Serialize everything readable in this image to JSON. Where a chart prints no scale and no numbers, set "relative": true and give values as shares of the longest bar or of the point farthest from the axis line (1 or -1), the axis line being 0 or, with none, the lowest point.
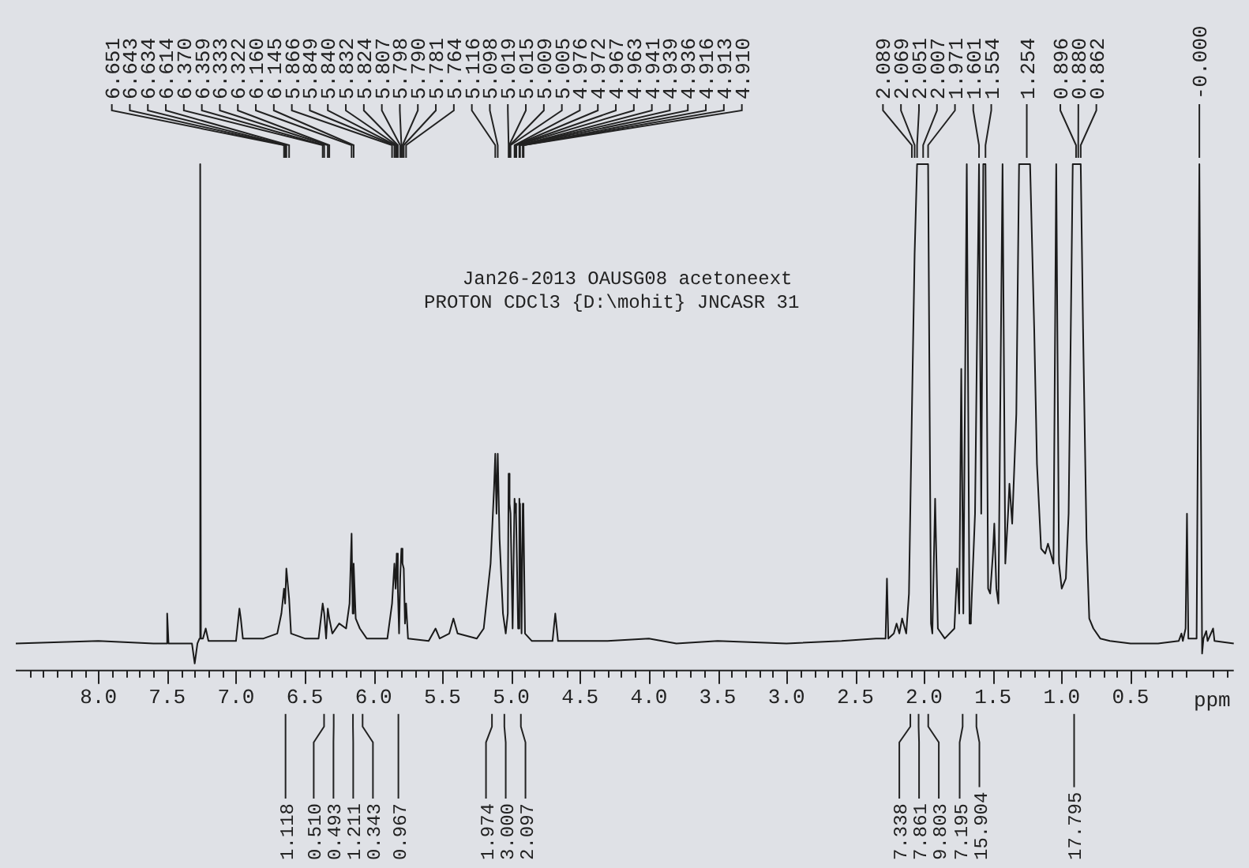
{
  "chart_data": {
    "type": "line",
    "title": "Jan26-2013 OAUSG08 acetoneext",
    "subtitle": "PROTON CDCl3 {D:\\mohit} JNCASR 31",
    "xlabel": "ppm",
    "relative": true,
    "grid": false,
    "legend": false,
    "marker": "none",
    "line_style": "solid",
    "tick_labels": "x",
    "xlim": [
      8.6,
      -0.25
    ],
    "xticks": [
      {
        "value": 8.5,
        "label": null
      },
      {
        "value": 8.4,
        "label": null
      },
      {
        "value": 8.3,
        "label": null
      },
      {
        "value": 8.2,
        "label": null
      },
      {
        "value": 8.1,
        "label": null
      },
      {
        "value": 8,
        "label": "8.0"
      },
      {
        "value": 7.9,
        "label": null
      },
      {
        "value": 7.8,
        "label": null
      },
      {
        "value": 7.7,
        "label": null
      },
      {
        "value": 7.6,
        "label": null
      },
      {
        "value": 7.5,
        "label": "7.5"
      },
      {
        "value": 7.4,
        "label": null
      },
      {
        "value": 7.3,
        "label": null
      },
      {
        "value": 7.2,
        "label": null
      },
      {
        "value": 7.1,
        "label": null
      },
      {
        "value": 7,
        "label": "7.0"
      },
      {
        "value": 6.9,
        "label": null
      },
      {
        "value": 6.8,
        "label": null
      },
      {
        "value": 6.7,
        "label": null
      },
      {
        "value": 6.6,
        "label": null
      },
      {
        "value": 6.5,
        "label": "6.5"
      },
      {
        "value": 6.4,
        "label": null
      },
      {
        "value": 6.3,
        "label": null
      },
      {
        "value": 6.2,
        "label": null
      },
      {
        "value": 6.1,
        "label": null
      },
      {
        "value": 6,
        "label": "6.0"
      },
      {
        "value": 5.9,
        "label": null
      },
      {
        "value": 5.8,
        "label": null
      },
      {
        "value": 5.7,
        "label": null
      },
      {
        "value": 5.6,
        "label": null
      },
      {
        "value": 5.5,
        "label": "5.5"
      },
      {
        "value": 5.4,
        "label": null
      },
      {
        "value": 5.3,
        "label": null
      },
      {
        "value": 5.2,
        "label": null
      },
      {
        "value": 5.1,
        "label": null
      },
      {
        "value": 5,
        "label": "5.0"
      },
      {
        "value": 4.9,
        "label": null
      },
      {
        "value": 4.8,
        "label": null
      },
      {
        "value": 4.7,
        "label": null
      },
      {
        "value": 4.6,
        "label": null
      },
      {
        "value": 4.5,
        "label": "4.5"
      },
      {
        "value": 4.4,
        "label": null
      },
      {
        "value": 4.3,
        "label": null
      },
      {
        "value": 4.2,
        "label": null
      },
      {
        "value": 4.1,
        "label": null
      },
      {
        "value": 4,
        "label": "4.0"
      },
      {
        "value": 3.9,
        "label": null
      },
      {
        "value": 3.8,
        "label": null
      },
      {
        "value": 3.7,
        "label": null
      },
      {
        "value": 3.6,
        "label": null
      },
      {
        "value": 3.5,
        "label": "3.5"
      },
      {
        "value": 3.4,
        "label": null
      },
      {
        "value": 3.3,
        "label": null
      },
      {
        "value": 3.2,
        "label": null
      },
      {
        "value": 3.1,
        "label": null
      },
      {
        "value": 3,
        "label": "3.0"
      },
      {
        "value": 2.9,
        "label": null
      },
      {
        "value": 2.8,
        "label": null
      },
      {
        "value": 2.7,
        "label": null
      },
      {
        "value": 2.6,
        "label": null
      },
      {
        "value": 2.5,
        "label": "2.5"
      },
      {
        "value": 2.4,
        "label": null
      },
      {
        "value": 2.3,
        "label": null
      },
      {
        "value": 2.2,
        "label": null
      },
      {
        "value": 2.1,
        "label": null
      },
      {
        "value": 2,
        "label": "2.0"
      },
      {
        "value": 1.9,
        "label": null
      },
      {
        "value": 1.8,
        "label": null
      },
      {
        "value": 1.7,
        "label": null
      },
      {
        "value": 1.6,
        "label": null
      },
      {
        "value": 1.5,
        "label": "1.5"
      },
      {
        "value": 1.4,
        "label": null
      },
      {
        "value": 1.3,
        "label": null
      },
      {
        "value": 1.2,
        "label": null
      },
      {
        "value": 1.1,
        "label": null
      },
      {
        "value": 1,
        "label": "1.0"
      },
      {
        "value": 0.9,
        "label": null
      },
      {
        "value": 0.8,
        "label": null
      },
      {
        "value": 0.7,
        "label": null
      },
      {
        "value": 0.6,
        "label": null
      },
      {
        "value": 0.5,
        "label": "0.5"
      },
      {
        "value": 0.4,
        "label": null
      },
      {
        "value": 0.3,
        "label": null
      },
      {
        "value": 0.2,
        "label": null
      },
      {
        "value": 0.1,
        "label": null
      },
      {
        "value": -0.1,
        "label": null
      },
      {
        "value": -0.2,
        "label": null
      }
    ],
    "series": [
      {
        "color": "#1a1a1a",
        "x": [
          8.6,
          8.0,
          7.6,
          7.51,
          7.5,
          7.49,
          7.32,
          7.3,
          7.28,
          7.265,
          7.26,
          7.255,
          7.24,
          7.22,
          7.2,
          7.0,
          6.975,
          6.965,
          6.95,
          6.8,
          6.7,
          6.67,
          6.651,
          6.643,
          6.634,
          6.614,
          6.6,
          6.5,
          6.4,
          6.37,
          6.359,
          6.345,
          6.333,
          6.322,
          6.3,
          6.25,
          6.2,
          6.175,
          6.16,
          6.152,
          6.145,
          6.13,
          6.1,
          6.05,
          5.9,
          5.866,
          5.849,
          5.84,
          5.832,
          5.824,
          5.815,
          5.807,
          5.798,
          5.79,
          5.781,
          5.772,
          5.764,
          5.75,
          5.6,
          5.55,
          5.52,
          5.45,
          5.42,
          5.39,
          5.25,
          5.2,
          5.15,
          5.125,
          5.116,
          5.107,
          5.098,
          5.085,
          5.06,
          5.04,
          5.025,
          5.019,
          5.015,
          5.009,
          5.005,
          4.99,
          4.976,
          4.972,
          4.967,
          4.963,
          4.95,
          4.941,
          4.939,
          4.936,
          4.925,
          4.916,
          4.913,
          4.91,
          4.9,
          4.85,
          4.7,
          4.68,
          4.66,
          4.3,
          4.0,
          3.8,
          3.5,
          3.0,
          2.6,
          2.35,
          2.28,
          2.27,
          2.26,
          2.22,
          2.2,
          2.18,
          2.16,
          2.13,
          2.11,
          2.089,
          2.069,
          2.051,
          2.03,
          2.007,
          1.99,
          1.971,
          1.95,
          1.94,
          1.92,
          1.9,
          1.85,
          1.78,
          1.76,
          1.745,
          1.73,
          1.715,
          1.69,
          1.67,
          1.66,
          1.63,
          1.601,
          1.585,
          1.57,
          1.554,
          1.535,
          1.52,
          1.5,
          1.49,
          1.475,
          1.46,
          1.43,
          1.41,
          1.39,
          1.38,
          1.36,
          1.33,
          1.31,
          1.28,
          1.254,
          1.23,
          1.2,
          1.18,
          1.15,
          1.12,
          1.1,
          1.08,
          1.06,
          1.04,
          1.02,
          1.0,
          0.97,
          0.95,
          0.92,
          0.896,
          0.88,
          0.862,
          0.845,
          0.82,
          0.8,
          0.77,
          0.72,
          0.65,
          0.5,
          0.3,
          0.15,
          0.13,
          0.12,
          0.1,
          0.09,
          0.08,
          0.02,
          0.01,
          0.0,
          -0.01,
          -0.02,
          -0.03,
          -0.05,
          -0.06,
          -0.1,
          -0.11,
          -0.25
        ],
        "values": [
          0.04,
          0.045,
          0.04,
          0.04,
          0.1,
          0.04,
          0.04,
          0,
          0.04,
          0.05,
          1,
          0.05,
          0.05,
          0.07,
          0.045,
          0.045,
          0.11,
          0.09,
          0.05,
          0.05,
          0.06,
          0.1,
          0.15,
          0.12,
          0.19,
          0.13,
          0.06,
          0.05,
          0.05,
          0.12,
          0.1,
          0.05,
          0.11,
          0.09,
          0.06,
          0.08,
          0.07,
          0.12,
          0.26,
          0.1,
          0.2,
          0.09,
          0.07,
          0.05,
          0.05,
          0.12,
          0.2,
          0.15,
          0.22,
          0.15,
          0.06,
          0.17,
          0.23,
          0.2,
          0.19,
          0.08,
          0.12,
          0.05,
          0.045,
          0.07,
          0.05,
          0.06,
          0.09,
          0.06,
          0.05,
          0.07,
          0.2,
          0.35,
          0.42,
          0.3,
          0.42,
          0.25,
          0.1,
          0.06,
          0.1,
          0.38,
          0.32,
          0.32,
          0.3,
          0.07,
          0.33,
          0.31,
          0.32,
          0.3,
          0.07,
          0.33,
          0.31,
          0.32,
          0.06,
          0.32,
          0.3,
          0.31,
          0.06,
          0.045,
          0.045,
          0.1,
          0.045,
          0.045,
          0.05,
          0.04,
          0.045,
          0.04,
          0.045,
          0.05,
          0.05,
          0.17,
          0.05,
          0.06,
          0.08,
          0.06,
          0.09,
          0.06,
          0.14,
          0.5,
          0.82,
          1,
          1,
          1,
          1,
          1,
          0.08,
          0.06,
          0.33,
          0.07,
          0.05,
          0.07,
          0.19,
          0.1,
          0.59,
          0.1,
          1,
          0.08,
          0.09,
          0.3,
          1,
          0.3,
          1,
          1,
          0.15,
          0.14,
          0.22,
          0.28,
          0.15,
          0.12,
          1,
          0.2,
          0.3,
          0.36,
          0.28,
          0.5,
          1,
          1,
          1,
          1,
          0.67,
          0.4,
          0.23,
          0.22,
          0.24,
          0.22,
          0.2,
          1,
          0.2,
          0.15,
          0.17,
          0.3,
          1,
          1,
          1,
          1,
          0.67,
          0.25,
          0.09,
          0.07,
          0.05,
          0.045,
          0.04,
          0.04,
          0.045,
          0.06,
          0.045,
          0.07,
          0.3,
          0.05,
          0.05,
          0.5,
          1,
          0.5,
          0.02,
          0.05,
          0.065,
          0.045,
          0.07,
          0.045,
          0.04
        ]
      }
    ],
    "annotations": [
      {
        "text": "6.651",
        "x": 6.651
      },
      {
        "text": "6.643",
        "x": 6.643
      },
      {
        "text": "6.634",
        "x": 6.634
      },
      {
        "text": "6.614",
        "x": 6.614
      },
      {
        "text": "6.370",
        "x": 6.37
      },
      {
        "text": "6.359",
        "x": 6.359
      },
      {
        "text": "6.333",
        "x": 6.333
      },
      {
        "text": "6.322",
        "x": 6.322
      },
      {
        "text": "6.160",
        "x": 6.16
      },
      {
        "text": "6.145",
        "x": 6.145
      },
      {
        "text": "5.866",
        "x": 5.866
      },
      {
        "text": "5.849",
        "x": 5.849
      },
      {
        "text": "5.840",
        "x": 5.84
      },
      {
        "text": "5.832",
        "x": 5.832
      },
      {
        "text": "5.824",
        "x": 5.824
      },
      {
        "text": "5.807",
        "x": 5.807
      },
      {
        "text": "5.798",
        "x": 5.798
      },
      {
        "text": "5.790",
        "x": 5.79
      },
      {
        "text": "5.781",
        "x": 5.781
      },
      {
        "text": "5.764",
        "x": 5.764
      },
      {
        "text": "5.116",
        "x": 5.116
      },
      {
        "text": "5.098",
        "x": 5.098
      },
      {
        "text": "5.019",
        "x": 5.019
      },
      {
        "text": "5.015",
        "x": 5.015
      },
      {
        "text": "5.009",
        "x": 5.009
      },
      {
        "text": "5.005",
        "x": 5.005
      },
      {
        "text": "4.976",
        "x": 4.976
      },
      {
        "text": "4.972",
        "x": 4.972
      },
      {
        "text": "4.967",
        "x": 4.967
      },
      {
        "text": "4.963",
        "x": 4.963
      },
      {
        "text": "4.941",
        "x": 4.941
      },
      {
        "text": "4.939",
        "x": 4.939
      },
      {
        "text": "4.936",
        "x": 4.936
      },
      {
        "text": "4.916",
        "x": 4.916
      },
      {
        "text": "4.913",
        "x": 4.913
      },
      {
        "text": "4.910",
        "x": 4.91
      },
      {
        "text": "2.089",
        "x": 2.089
      },
      {
        "text": "2.069",
        "x": 2.069
      },
      {
        "text": "2.051",
        "x": 2.051
      },
      {
        "text": "2.007",
        "x": 2.007
      },
      {
        "text": "1.971",
        "x": 1.971
      },
      {
        "text": "1.601",
        "x": 1.601
      },
      {
        "text": "1.554",
        "x": 1.554
      },
      {
        "text": "1.254",
        "x": 1.254
      },
      {
        "text": "0.896",
        "x": 0.896
      },
      {
        "text": "0.880",
        "x": 0.88
      },
      {
        "text": "0.862",
        "x": 0.862
      },
      {
        "text": "-0.000",
        "x": 0
      },
      {
        "text": "1.118",
        "x": 6.64
      },
      {
        "text": "0.510",
        "x": 6.36
      },
      {
        "text": "0.493",
        "x": 6.29
      },
      {
        "text": "1.211",
        "x": 6.15
      },
      {
        "text": "0.343",
        "x": 6.08
      },
      {
        "text": "0.967",
        "x": 5.82
      },
      {
        "text": "1.974",
        "x": 5.14
      },
      {
        "text": "3.000",
        "x": 5.05
      },
      {
        "text": "2.097",
        "x": 4.93
      },
      {
        "text": "7.338",
        "x": 2.1
      },
      {
        "text": "7.861",
        "x": 2.04
      },
      {
        "text": "9.803",
        "x": 1.97
      },
      {
        "text": "7.195",
        "x": 1.72
      },
      {
        "text": "15.904",
        "x": 1.62
      },
      {
        "text": "17.795",
        "x": 0.91
      }
    ]
  }
}
